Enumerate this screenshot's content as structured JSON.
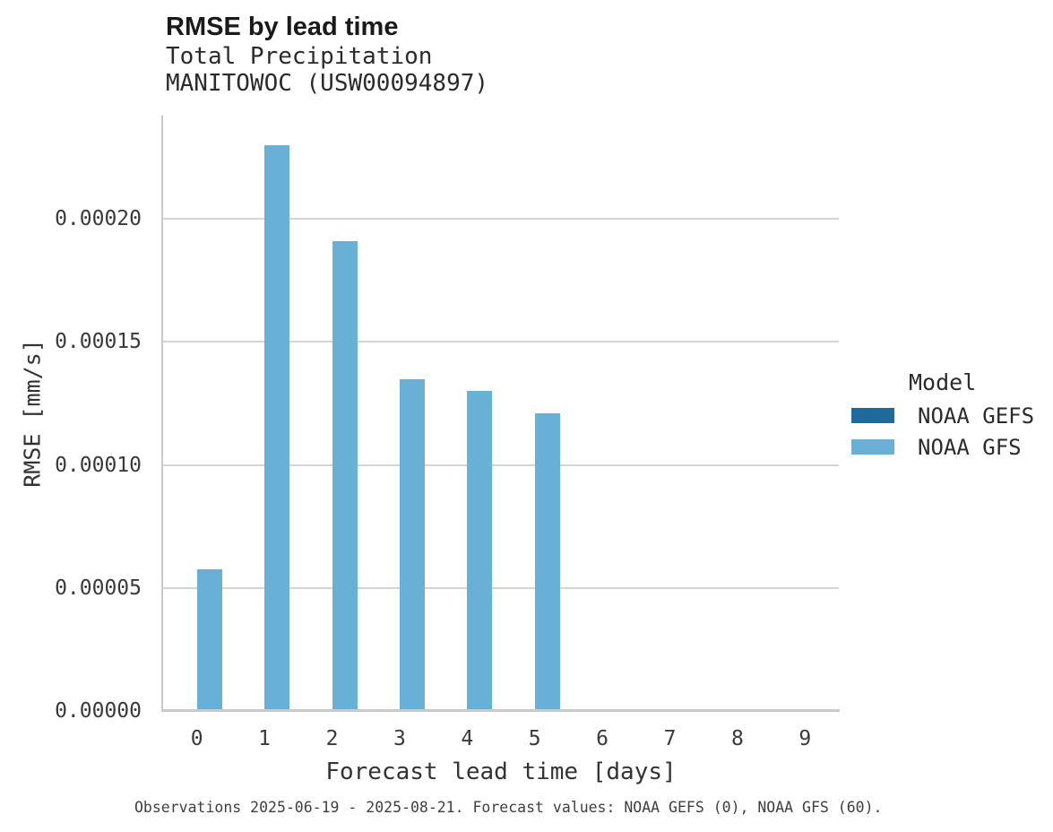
{
  "chart_data": {
    "type": "bar",
    "bar_layout": "dodged",
    "title": "RMSE by lead time",
    "subtitle_lines": [
      "Total Precipitation",
      "MANITOWOC (USW00094897)"
    ],
    "xlabel": "Forecast lead time [days]",
    "ylabel": "RMSE [mm/s]",
    "caption": "Observations 2025-06-19 - 2025-08-21. Forecast values: NOAA GEFS (0), NOAA GFS (60).",
    "categories": [
      "0",
      "1",
      "2",
      "3",
      "4",
      "5",
      "6",
      "7",
      "8",
      "9"
    ],
    "series": [
      {
        "name": "NOAA GEFS",
        "color": "#1c6b9c",
        "values": [
          null,
          null,
          null,
          null,
          null,
          null,
          null,
          null,
          null,
          null
        ]
      },
      {
        "name": "NOAA GFS",
        "color": "#69b0d6",
        "values": [
          5.77e-05,
          0.00023,
          0.000191,
          0.000135,
          0.00013,
          0.000121,
          null,
          null,
          null,
          null
        ]
      }
    ],
    "ylim": [
      0,
      0.000242
    ],
    "yticks": [
      0,
      5e-05,
      0.0001,
      0.00015,
      0.0002
    ],
    "ytick_labels": [
      "0.00000",
      "0.00005",
      "0.00010",
      "0.00015",
      "0.00020"
    ],
    "grid": true,
    "legend_title": "Model",
    "legend_position": "right"
  }
}
